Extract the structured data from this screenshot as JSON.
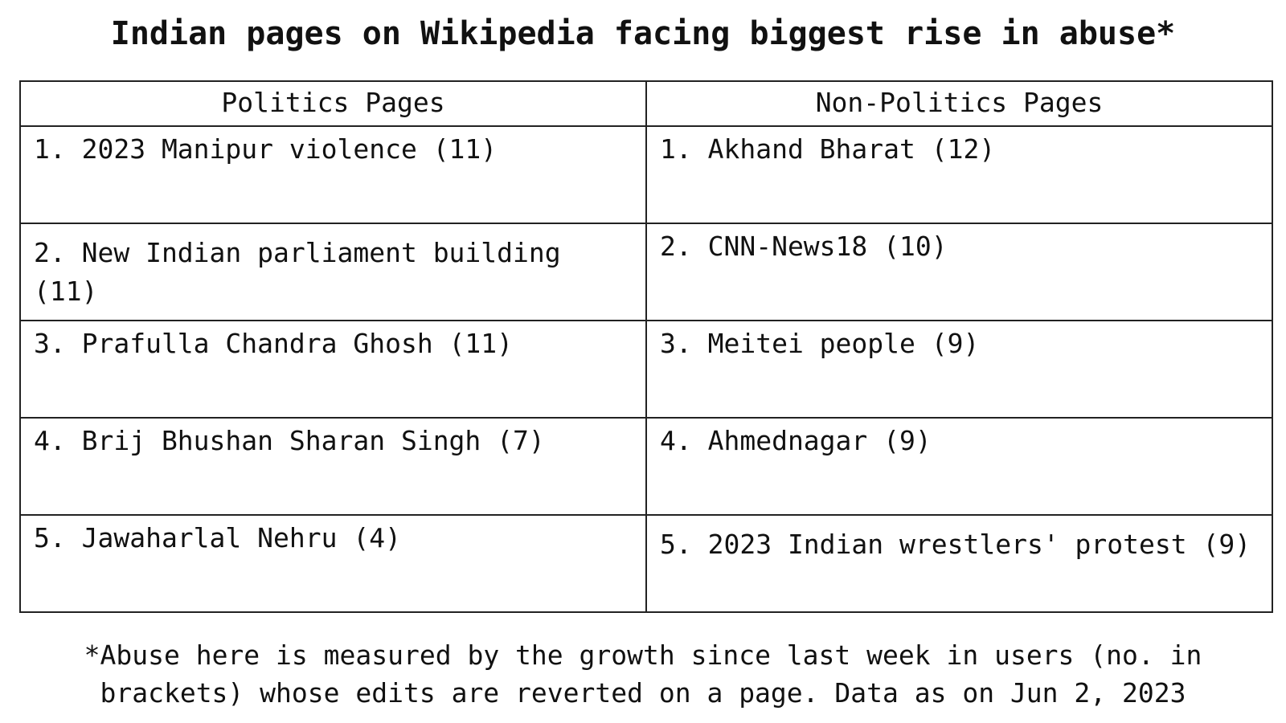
{
  "title": "Indian pages on Wikipedia facing biggest rise in abuse*",
  "table": {
    "headers": [
      "Politics Pages",
      "Non-Politics Pages"
    ],
    "rows": [
      [
        "1. 2023 Manipur violence (11)",
        "1. Akhand Bharat (12)"
      ],
      [
        "2. New Indian parliament building (11)",
        "2. CNN-News18 (10)"
      ],
      [
        "3. Prafulla Chandra Ghosh (11)",
        "3. Meitei people (9)"
      ],
      [
        "4. Brij Bhushan Sharan Singh (7)",
        "4. Ahmednagar (9)"
      ],
      [
        "5. Jawaharlal Nehru (4)",
        "5. 2023 Indian wrestlers' protest (9)"
      ]
    ]
  },
  "footnote": {
    "line1": "*Abuse here is measured by the growth since last week in users (no. in",
    "line2": "brackets) whose edits are reverted on a page. Data as on Jun 2, 2023"
  }
}
